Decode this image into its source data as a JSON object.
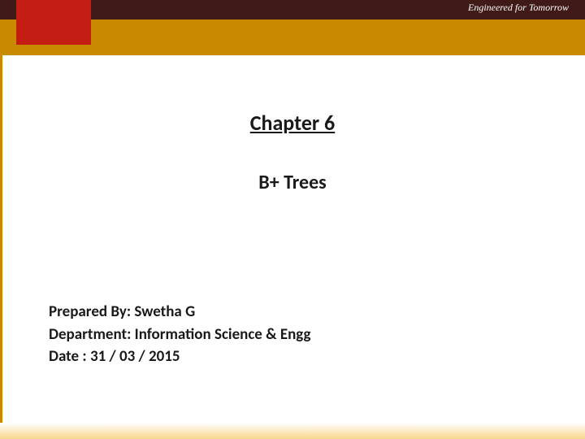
{
  "colors": {
    "header_bg": "#3f1a17",
    "accent_bar": "#c88a00",
    "accent_square": "#c41e14",
    "text_color": "#1a1a1a",
    "tagline_color": "#ffffff",
    "left_border": "#c88a00",
    "footer_gradient_start": "#f7d68a",
    "footer_gradient_end": "#ffffff",
    "page_bg": "#ffffff"
  },
  "header": {
    "tagline": "Engineered for Tomorrow"
  },
  "content": {
    "chapter_title": "Chapter 6",
    "subject_title": "B+ Trees",
    "prepared_by_label": "Prepared By:",
    "prepared_by_value": "Swetha G",
    "department_label": "Department:",
    "department_value": "Information Science & Engg",
    "date_label": "Date :",
    "date_value": "31 / 03 / 2015"
  },
  "typography": {
    "title_fontsize": 26,
    "subject_fontsize": 24,
    "info_fontsize": 19,
    "tagline_fontsize": 12
  }
}
